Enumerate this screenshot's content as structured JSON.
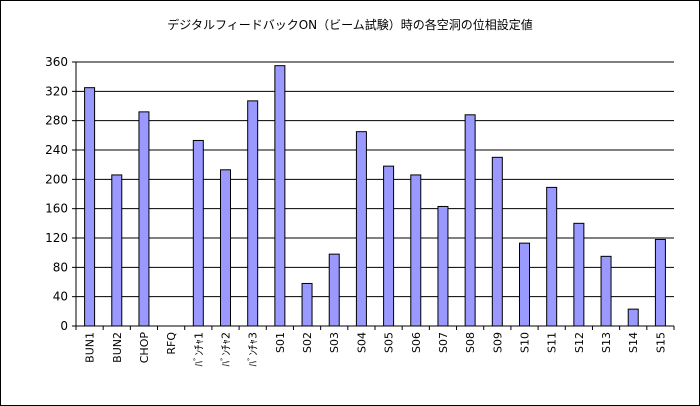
{
  "chart_data": {
    "type": "bar",
    "title": "デジタルフィードバックON（ビーム試験）時の各空洞の位相設定値",
    "xlabel": "",
    "ylabel": "",
    "categories": [
      "BUN1",
      "BUN2",
      "CHOP",
      "RFQ",
      "ﾊﾞﾝﾁｬ1",
      "ﾊﾞﾝﾁｬ2",
      "ﾊﾞﾝﾁｬ3",
      "S01",
      "S02",
      "S03",
      "S04",
      "S05",
      "S06",
      "S07",
      "S08",
      "S09",
      "S10",
      "S11",
      "S12",
      "S13",
      "S14",
      "S15"
    ],
    "values": [
      325,
      206,
      292,
      0,
      253,
      213,
      307,
      355,
      58,
      98,
      265,
      218,
      206,
      163,
      288,
      230,
      113,
      189,
      140,
      95,
      23,
      118
    ],
    "ylim": [
      0,
      360
    ],
    "yticks": [
      0,
      40,
      80,
      120,
      160,
      200,
      240,
      280,
      320,
      360
    ],
    "grid": true,
    "legend": "none",
    "bar_color": "#9999ff"
  }
}
